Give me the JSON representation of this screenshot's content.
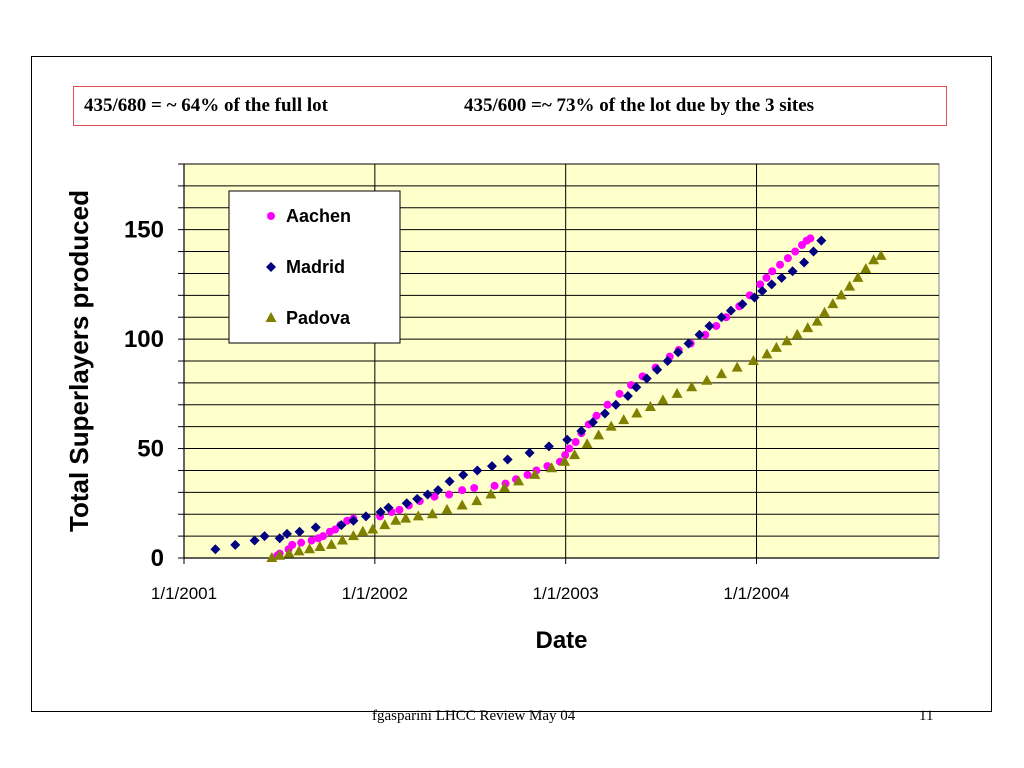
{
  "header": {
    "note_left": "435/680 = ~ 64% of the full lot",
    "note_right": "435/600 =~ 73% of the lot due by the 3 sites"
  },
  "footer": {
    "text": "fgasparini  LHCC Review May 04",
    "slide_number": "11"
  },
  "colors": {
    "plot_background": "#ffffcc",
    "aachen": "#ff00ff",
    "madrid": "#000080",
    "padova": "#808000",
    "note_border": "#e05050"
  },
  "chart_data": {
    "type": "scatter",
    "title": "",
    "xlabel": "Date",
    "ylabel": "Total Superlayers produced",
    "x_ticks": [
      "1/1/2001",
      "1/1/2002",
      "1/1/2003",
      "1/1/2004"
    ],
    "y_ticks": [
      0,
      50,
      100,
      150
    ],
    "xlim": [
      "2001-01-01",
      "2004-12-15"
    ],
    "ylim": [
      0,
      180
    ],
    "grid": true,
    "legend_position": "top-left",
    "series": [
      {
        "name": "Aachen",
        "marker": "circle",
        "color": "#ff00ff",
        "points": [
          [
            "2001-06-28",
            1
          ],
          [
            "2001-07-03",
            2
          ],
          [
            "2001-07-20",
            4
          ],
          [
            "2001-07-27",
            6
          ],
          [
            "2001-08-13",
            7
          ],
          [
            "2001-09-02",
            8
          ],
          [
            "2001-09-15",
            9
          ],
          [
            "2001-09-24",
            10
          ],
          [
            "2001-10-07",
            12
          ],
          [
            "2001-10-17",
            13
          ],
          [
            "2001-10-27",
            15
          ],
          [
            "2001-11-09",
            17
          ],
          [
            "2001-11-21",
            18
          ],
          [
            "2002-01-11",
            19
          ],
          [
            "2002-02-02",
            21
          ],
          [
            "2002-02-17",
            22
          ],
          [
            "2002-03-07",
            24
          ],
          [
            "2002-03-28",
            26
          ],
          [
            "2002-04-25",
            28
          ],
          [
            "2002-05-23",
            29
          ],
          [
            "2002-06-17",
            31
          ],
          [
            "2002-07-10",
            32
          ],
          [
            "2002-08-18",
            33
          ],
          [
            "2002-09-08",
            34
          ],
          [
            "2002-09-28",
            36
          ],
          [
            "2002-10-20",
            38
          ],
          [
            "2002-11-06",
            40
          ],
          [
            "2002-11-27",
            42
          ],
          [
            "2002-12-21",
            44
          ],
          [
            "2002-12-31",
            47
          ],
          [
            "2003-01-08",
            50
          ],
          [
            "2003-01-20",
            53
          ],
          [
            "2003-01-31",
            57
          ],
          [
            "2003-02-14",
            61
          ],
          [
            "2003-03-01",
            65
          ],
          [
            "2003-03-22",
            70
          ],
          [
            "2003-04-14",
            75
          ],
          [
            "2003-05-06",
            79
          ],
          [
            "2003-05-28",
            83
          ],
          [
            "2003-06-22",
            87
          ],
          [
            "2003-07-19",
            92
          ],
          [
            "2003-08-05",
            95
          ],
          [
            "2003-08-28",
            98
          ],
          [
            "2003-09-25",
            102
          ],
          [
            "2003-10-16",
            106
          ],
          [
            "2003-11-04",
            110
          ],
          [
            "2003-11-29",
            115
          ],
          [
            "2003-12-19",
            120
          ],
          [
            "2004-01-08",
            125
          ],
          [
            "2004-01-20",
            128
          ],
          [
            "2004-01-31",
            131
          ],
          [
            "2004-02-15",
            134
          ],
          [
            "2004-03-01",
            137
          ],
          [
            "2004-03-15",
            140
          ],
          [
            "2004-03-28",
            143
          ],
          [
            "2004-04-06",
            145
          ],
          [
            "2004-04-13",
            146
          ]
        ]
      },
      {
        "name": "Madrid",
        "marker": "diamond",
        "color": "#000080",
        "points": [
          [
            "2001-03-02",
            4
          ],
          [
            "2001-04-09",
            6
          ],
          [
            "2001-05-16",
            8
          ],
          [
            "2001-06-04",
            10
          ],
          [
            "2001-07-03",
            9
          ],
          [
            "2001-07-17",
            11
          ],
          [
            "2001-08-10",
            12
          ],
          [
            "2001-09-10",
            14
          ],
          [
            "2001-10-29",
            15
          ],
          [
            "2001-11-21",
            17
          ],
          [
            "2001-12-15",
            19
          ],
          [
            "2002-01-12",
            21
          ],
          [
            "2002-01-27",
            23
          ],
          [
            "2002-03-03",
            25
          ],
          [
            "2002-03-23",
            27
          ],
          [
            "2002-04-12",
            29
          ],
          [
            "2002-05-02",
            31
          ],
          [
            "2002-05-24",
            35
          ],
          [
            "2002-06-19",
            38
          ],
          [
            "2002-07-16",
            40
          ],
          [
            "2002-08-13",
            42
          ],
          [
            "2002-09-12",
            45
          ],
          [
            "2002-10-24",
            48
          ],
          [
            "2002-11-30",
            51
          ],
          [
            "2003-01-04",
            54
          ],
          [
            "2003-01-31",
            58
          ],
          [
            "2003-02-22",
            62
          ],
          [
            "2003-03-17",
            66
          ],
          [
            "2003-04-07",
            70
          ],
          [
            "2003-04-30",
            74
          ],
          [
            "2003-05-16",
            78
          ],
          [
            "2003-06-05",
            82
          ],
          [
            "2003-06-25",
            86
          ],
          [
            "2003-07-15",
            90
          ],
          [
            "2003-08-04",
            94
          ],
          [
            "2003-08-24",
            98
          ],
          [
            "2003-09-14",
            102
          ],
          [
            "2003-10-03",
            106
          ],
          [
            "2003-10-26",
            110
          ],
          [
            "2003-11-13",
            113
          ],
          [
            "2003-12-05",
            116
          ],
          [
            "2003-12-28",
            119
          ],
          [
            "2004-01-12",
            122
          ],
          [
            "2004-01-30",
            125
          ],
          [
            "2004-02-18",
            128
          ],
          [
            "2004-03-10",
            131
          ],
          [
            "2004-04-01",
            135
          ],
          [
            "2004-04-19",
            140
          ],
          [
            "2004-05-04",
            145
          ]
        ]
      },
      {
        "name": "Padova",
        "marker": "triangle",
        "color": "#808000",
        "points": [
          [
            "2001-06-18",
            0
          ],
          [
            "2001-07-03",
            1
          ],
          [
            "2001-07-21",
            2
          ],
          [
            "2001-08-09",
            3
          ],
          [
            "2001-08-29",
            4
          ],
          [
            "2001-09-18",
            5
          ],
          [
            "2001-10-10",
            6
          ],
          [
            "2001-10-31",
            8
          ],
          [
            "2001-11-21",
            10
          ],
          [
            "2001-12-09",
            12
          ],
          [
            "2001-12-28",
            13
          ],
          [
            "2002-01-20",
            15
          ],
          [
            "2002-02-10",
            17
          ],
          [
            "2002-03-01",
            18
          ],
          [
            "2002-03-25",
            19
          ],
          [
            "2002-04-21",
            20
          ],
          [
            "2002-05-19",
            22
          ],
          [
            "2002-06-17",
            24
          ],
          [
            "2002-07-15",
            26
          ],
          [
            "2002-08-11",
            29
          ],
          [
            "2002-09-06",
            32
          ],
          [
            "2002-10-03",
            35
          ],
          [
            "2002-11-03",
            38
          ],
          [
            "2002-12-05",
            41
          ],
          [
            "2002-12-30",
            44
          ],
          [
            "2003-01-18",
            47
          ],
          [
            "2003-02-11",
            52
          ],
          [
            "2003-03-05",
            56
          ],
          [
            "2003-03-29",
            60
          ],
          [
            "2003-04-22",
            63
          ],
          [
            "2003-05-17",
            66
          ],
          [
            "2003-06-12",
            69
          ],
          [
            "2003-07-06",
            72
          ],
          [
            "2003-08-02",
            75
          ],
          [
            "2003-08-30",
            78
          ],
          [
            "2003-09-28",
            81
          ],
          [
            "2003-10-26",
            84
          ],
          [
            "2003-11-25",
            87
          ],
          [
            "2003-12-26",
            90
          ],
          [
            "2004-01-21",
            93
          ],
          [
            "2004-02-08",
            96
          ],
          [
            "2004-02-28",
            99
          ],
          [
            "2004-03-19",
            102
          ],
          [
            "2004-04-08",
            105
          ],
          [
            "2004-04-26",
            108
          ],
          [
            "2004-05-10",
            112
          ],
          [
            "2004-05-26",
            116
          ],
          [
            "2004-06-11",
            120
          ],
          [
            "2004-06-27",
            124
          ],
          [
            "2004-07-13",
            128
          ],
          [
            "2004-07-28",
            132
          ],
          [
            "2004-08-12",
            136
          ],
          [
            "2004-08-26",
            138
          ]
        ]
      }
    ]
  }
}
